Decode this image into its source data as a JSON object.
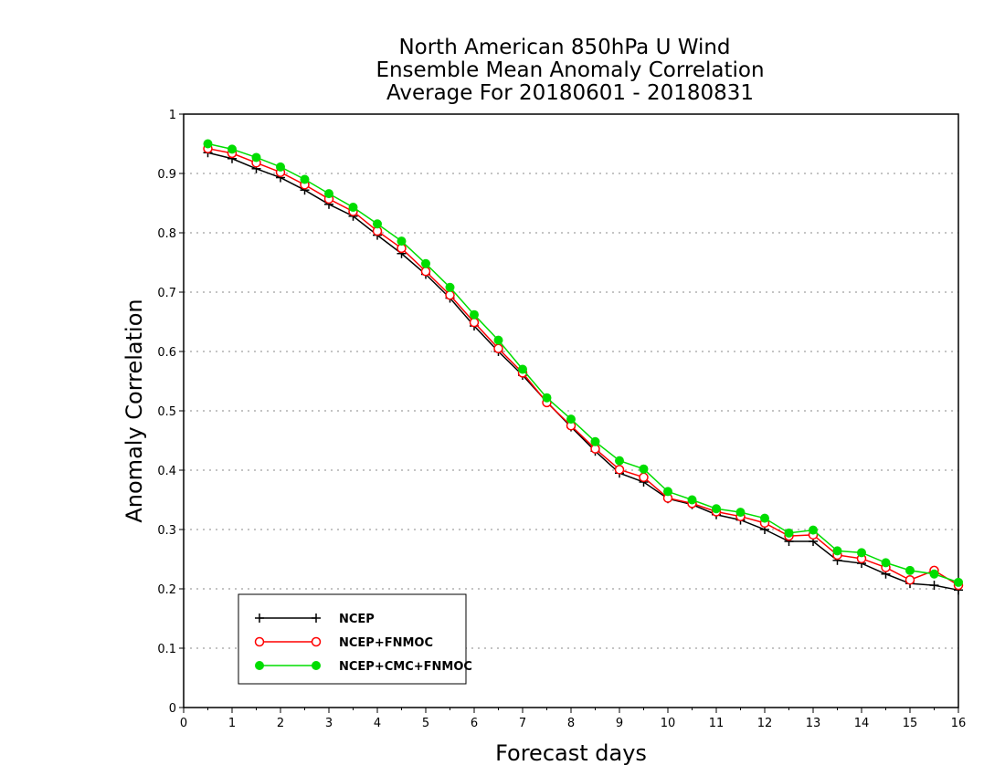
{
  "chart_data": {
    "type": "line",
    "title": [
      "North American 850hPa U Wind",
      "Ensemble Mean Anomaly Correlation",
      "Average For 20180601 - 20180831"
    ],
    "xlabel": "Forecast days",
    "ylabel": "Anomaly Correlation",
    "xlim": [
      0,
      16
    ],
    "ylim": [
      0,
      1
    ],
    "xticks": [
      "0",
      "1",
      "2",
      "3",
      "4",
      "5",
      "6",
      "7",
      "8",
      "9",
      "10",
      "11",
      "12",
      "13",
      "14",
      "15",
      "16"
    ],
    "yticks": [
      "0",
      "0.1",
      "0.2",
      "0.3",
      "0.4",
      "0.5",
      "0.6",
      "0.7",
      "0.8",
      "0.9",
      "1"
    ],
    "grid": "horizontal dotted",
    "legend_position": "bottom-left",
    "x": [
      0.5,
      1,
      1.5,
      2,
      2.5,
      3,
      3.5,
      4,
      4.5,
      5,
      5.5,
      6,
      6.5,
      7,
      7.5,
      8,
      8.5,
      9,
      9.5,
      10,
      10.5,
      11,
      11.5,
      12,
      12.5,
      13,
      13.5,
      14,
      14.5,
      15,
      15.5,
      16
    ],
    "series": [
      {
        "name": "NCEP",
        "color": "#000000",
        "marker": "plus",
        "values": [
          0.935,
          0.925,
          0.908,
          0.893,
          0.872,
          0.848,
          0.828,
          0.796,
          0.765,
          0.73,
          0.69,
          0.643,
          0.6,
          0.56,
          0.515,
          0.473,
          0.432,
          0.395,
          0.38,
          0.352,
          0.342,
          0.325,
          0.316,
          0.3,
          0.28,
          0.28,
          0.248,
          0.243,
          0.225,
          0.209,
          0.206,
          0.198
        ]
      },
      {
        "name": "NCEP+FNMOC",
        "color": "#ff0000",
        "marker": "open-circle",
        "values": [
          0.942,
          0.934,
          0.918,
          0.902,
          0.881,
          0.857,
          0.836,
          0.803,
          0.774,
          0.735,
          0.695,
          0.649,
          0.605,
          0.564,
          0.514,
          0.475,
          0.436,
          0.401,
          0.388,
          0.353,
          0.344,
          0.33,
          0.322,
          0.311,
          0.289,
          0.291,
          0.257,
          0.251,
          0.236,
          0.215,
          0.231,
          0.206
        ]
      },
      {
        "name": "NCEP+CMC+FNMOC",
        "color": "#00dd00",
        "marker": "filled-circle",
        "values": [
          0.95,
          0.941,
          0.927,
          0.911,
          0.89,
          0.866,
          0.843,
          0.815,
          0.786,
          0.748,
          0.708,
          0.662,
          0.619,
          0.57,
          0.522,
          0.486,
          0.448,
          0.416,
          0.402,
          0.364,
          0.35,
          0.335,
          0.329,
          0.319,
          0.294,
          0.299,
          0.264,
          0.261,
          0.244,
          0.231,
          0.225,
          0.211
        ]
      }
    ]
  }
}
